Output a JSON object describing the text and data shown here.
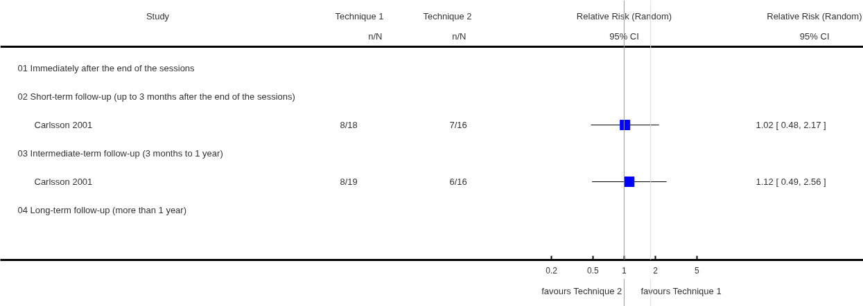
{
  "chart_data": {
    "type": "scatter",
    "orientation": "horizontal",
    "categories": [
      "01 Immediately after the end of the sessions",
      "02 Short-term follow-up (up to 3 months after the end of the sessions)",
      "Carlsson 2001",
      "03 Intermediate-term follow-up (3 months to 1 year)",
      "Carlsson 2001",
      "04 Long-term follow-up (more than 1 year)"
    ],
    "values": [
      null,
      null,
      1.02,
      null,
      1.12,
      null
    ],
    "errors": [
      null,
      null,
      [
        0.48,
        2.17
      ],
      null,
      [
        0.49,
        2.56
      ],
      null
    ],
    "color": "#0000ff",
    "marker": "square",
    "log": "x",
    "xlim": [
      1e-06,
      200
    ],
    "xticks": [
      0.2,
      0.5,
      1,
      2,
      5
    ],
    "ref_lines": [
      {
        "axis": "x",
        "value": 1,
        "color": "#999999"
      },
      {
        "axis": "x",
        "value": 1.8,
        "color": "#dddddd"
      }
    ],
    "annotations": [
      "Study",
      "Technique 1",
      "n/N",
      "Technique 2",
      "n/N",
      "Relative Risk (Random)",
      "95% CI",
      "Relative Risk (Random)",
      "95% CI",
      "8/18",
      "7/16",
      "8/19",
      "6/16",
      "favours Technique 2",
      "favours Technique 1",
      "1.02 [ 0.48, 2.17 ]",
      "1.12 [ 0.49, 2.56 ]"
    ],
    "tick_labels": "x",
    "grid": false
  }
}
